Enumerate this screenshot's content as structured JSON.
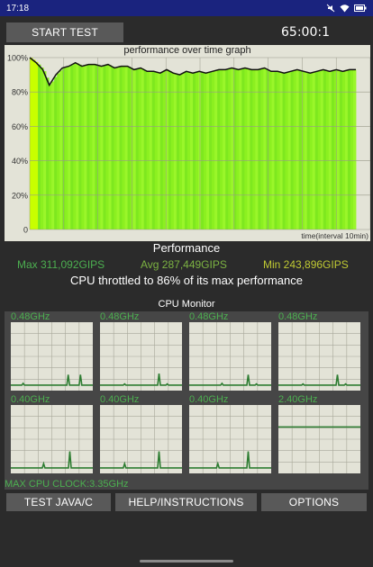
{
  "status_bar": {
    "time": "17:18"
  },
  "top": {
    "start_label": "START TEST",
    "timer": "65:00:1"
  },
  "graph": {
    "title": "performance over time graph",
    "xlabel": "time(interval 10min)",
    "y_ticks": [
      "100%",
      "80%",
      "60%",
      "40%",
      "20%",
      "0"
    ]
  },
  "chart_data": {
    "type": "line",
    "title": "performance over time graph",
    "xlabel": "time(interval 10min)",
    "ylabel": "",
    "ylim": [
      0,
      100
    ],
    "y_ticks": [
      "0",
      "20%",
      "40%",
      "60%",
      "80%",
      "100%"
    ],
    "series": [
      {
        "values": [
          100,
          97,
          93,
          84,
          90,
          94,
          95,
          97,
          95,
          96,
          96,
          95,
          96,
          94,
          95,
          95,
          93,
          94,
          92,
          92,
          91,
          93,
          91,
          90,
          92,
          91,
          92,
          91,
          92,
          93,
          93,
          94,
          93,
          94,
          93,
          93,
          94,
          92,
          92,
          91,
          92,
          93,
          92,
          91,
          92,
          93,
          92,
          93,
          92,
          93,
          93
        ]
      }
    ],
    "grid": true,
    "area_fill_note": "green bars under line"
  },
  "performance": {
    "title": "Performance",
    "max": "Max 311,092GIPS",
    "avg": "Avg 287,449GIPS",
    "min": "Min 243,896GIPS",
    "throttle": "CPU throttled to 86% of its max performance",
    "colors": {
      "max": "#4caf50",
      "avg": "#7cb342",
      "min": "#c0ca33"
    }
  },
  "cpu_monitor": {
    "title": "CPU Monitor",
    "cores": [
      {
        "freq": "0.48GHz",
        "spikes": [
          [
            0.15,
            0.06
          ],
          [
            0.7,
            0.2
          ],
          [
            0.85,
            0.2
          ]
        ]
      },
      {
        "freq": "0.48GHz",
        "spikes": [
          [
            0.3,
            0.05
          ],
          [
            0.72,
            0.22
          ],
          [
            0.82,
            0.05
          ]
        ]
      },
      {
        "freq": "0.48GHz",
        "spikes": [
          [
            0.4,
            0.06
          ],
          [
            0.72,
            0.2
          ],
          [
            0.82,
            0.05
          ]
        ]
      },
      {
        "freq": "0.48GHz",
        "spikes": [
          [
            0.3,
            0.05
          ],
          [
            0.72,
            0.2
          ],
          [
            0.82,
            0.05
          ]
        ]
      },
      {
        "freq": "0.40GHz",
        "spikes": [
          [
            0.4,
            0.1
          ],
          [
            0.72,
            0.3
          ]
        ]
      },
      {
        "freq": "0.40GHz",
        "spikes": [
          [
            0.3,
            0.1
          ],
          [
            0.72,
            0.3
          ]
        ]
      },
      {
        "freq": "0.40GHz",
        "spikes": [
          [
            0.35,
            0.1
          ],
          [
            0.72,
            0.3
          ]
        ]
      },
      {
        "freq": "2.40GHz",
        "flat": 0.7
      }
    ],
    "line_color": "#2e7d32",
    "max_clock": "MAX CPU CLOCK:3.35GHz"
  },
  "buttons": {
    "java": "TEST JAVA/C",
    "help": "HELP/INSTRUCTIONS",
    "options": "OPTIONS"
  }
}
